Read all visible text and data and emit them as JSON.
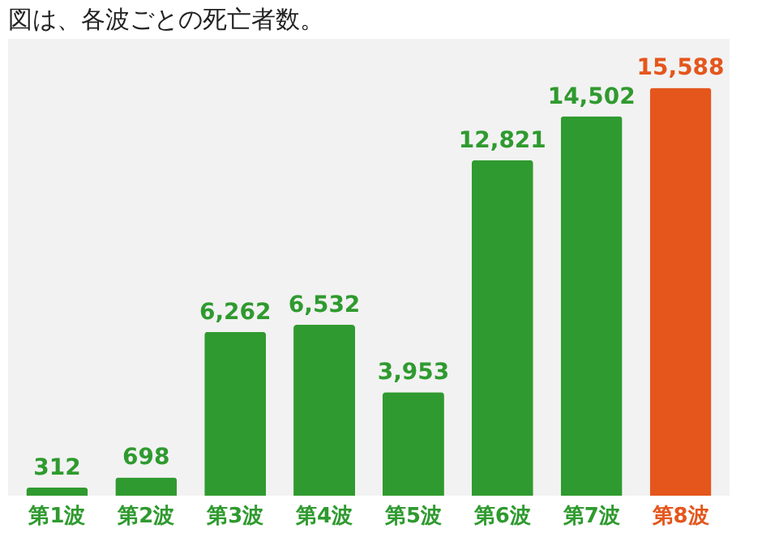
{
  "chart_data": {
    "type": "bar",
    "title": "図は、各波ごとの死亡者数。",
    "categories": [
      "第1波",
      "第2波",
      "第3波",
      "第4波",
      "第5波",
      "第6波",
      "第7波",
      "第8波"
    ],
    "values": [
      312,
      698,
      6262,
      6532,
      3953,
      12821,
      14502,
      15588
    ],
    "value_labels": [
      "312",
      "698",
      "6,262",
      "6,532",
      "3,953",
      "12,821",
      "14,502",
      "15,588"
    ],
    "colors": [
      "#2f9a2f",
      "#2f9a2f",
      "#2f9a2f",
      "#2f9a2f",
      "#2f9a2f",
      "#2f9a2f",
      "#2f9a2f",
      "#e4561c"
    ]
  }
}
